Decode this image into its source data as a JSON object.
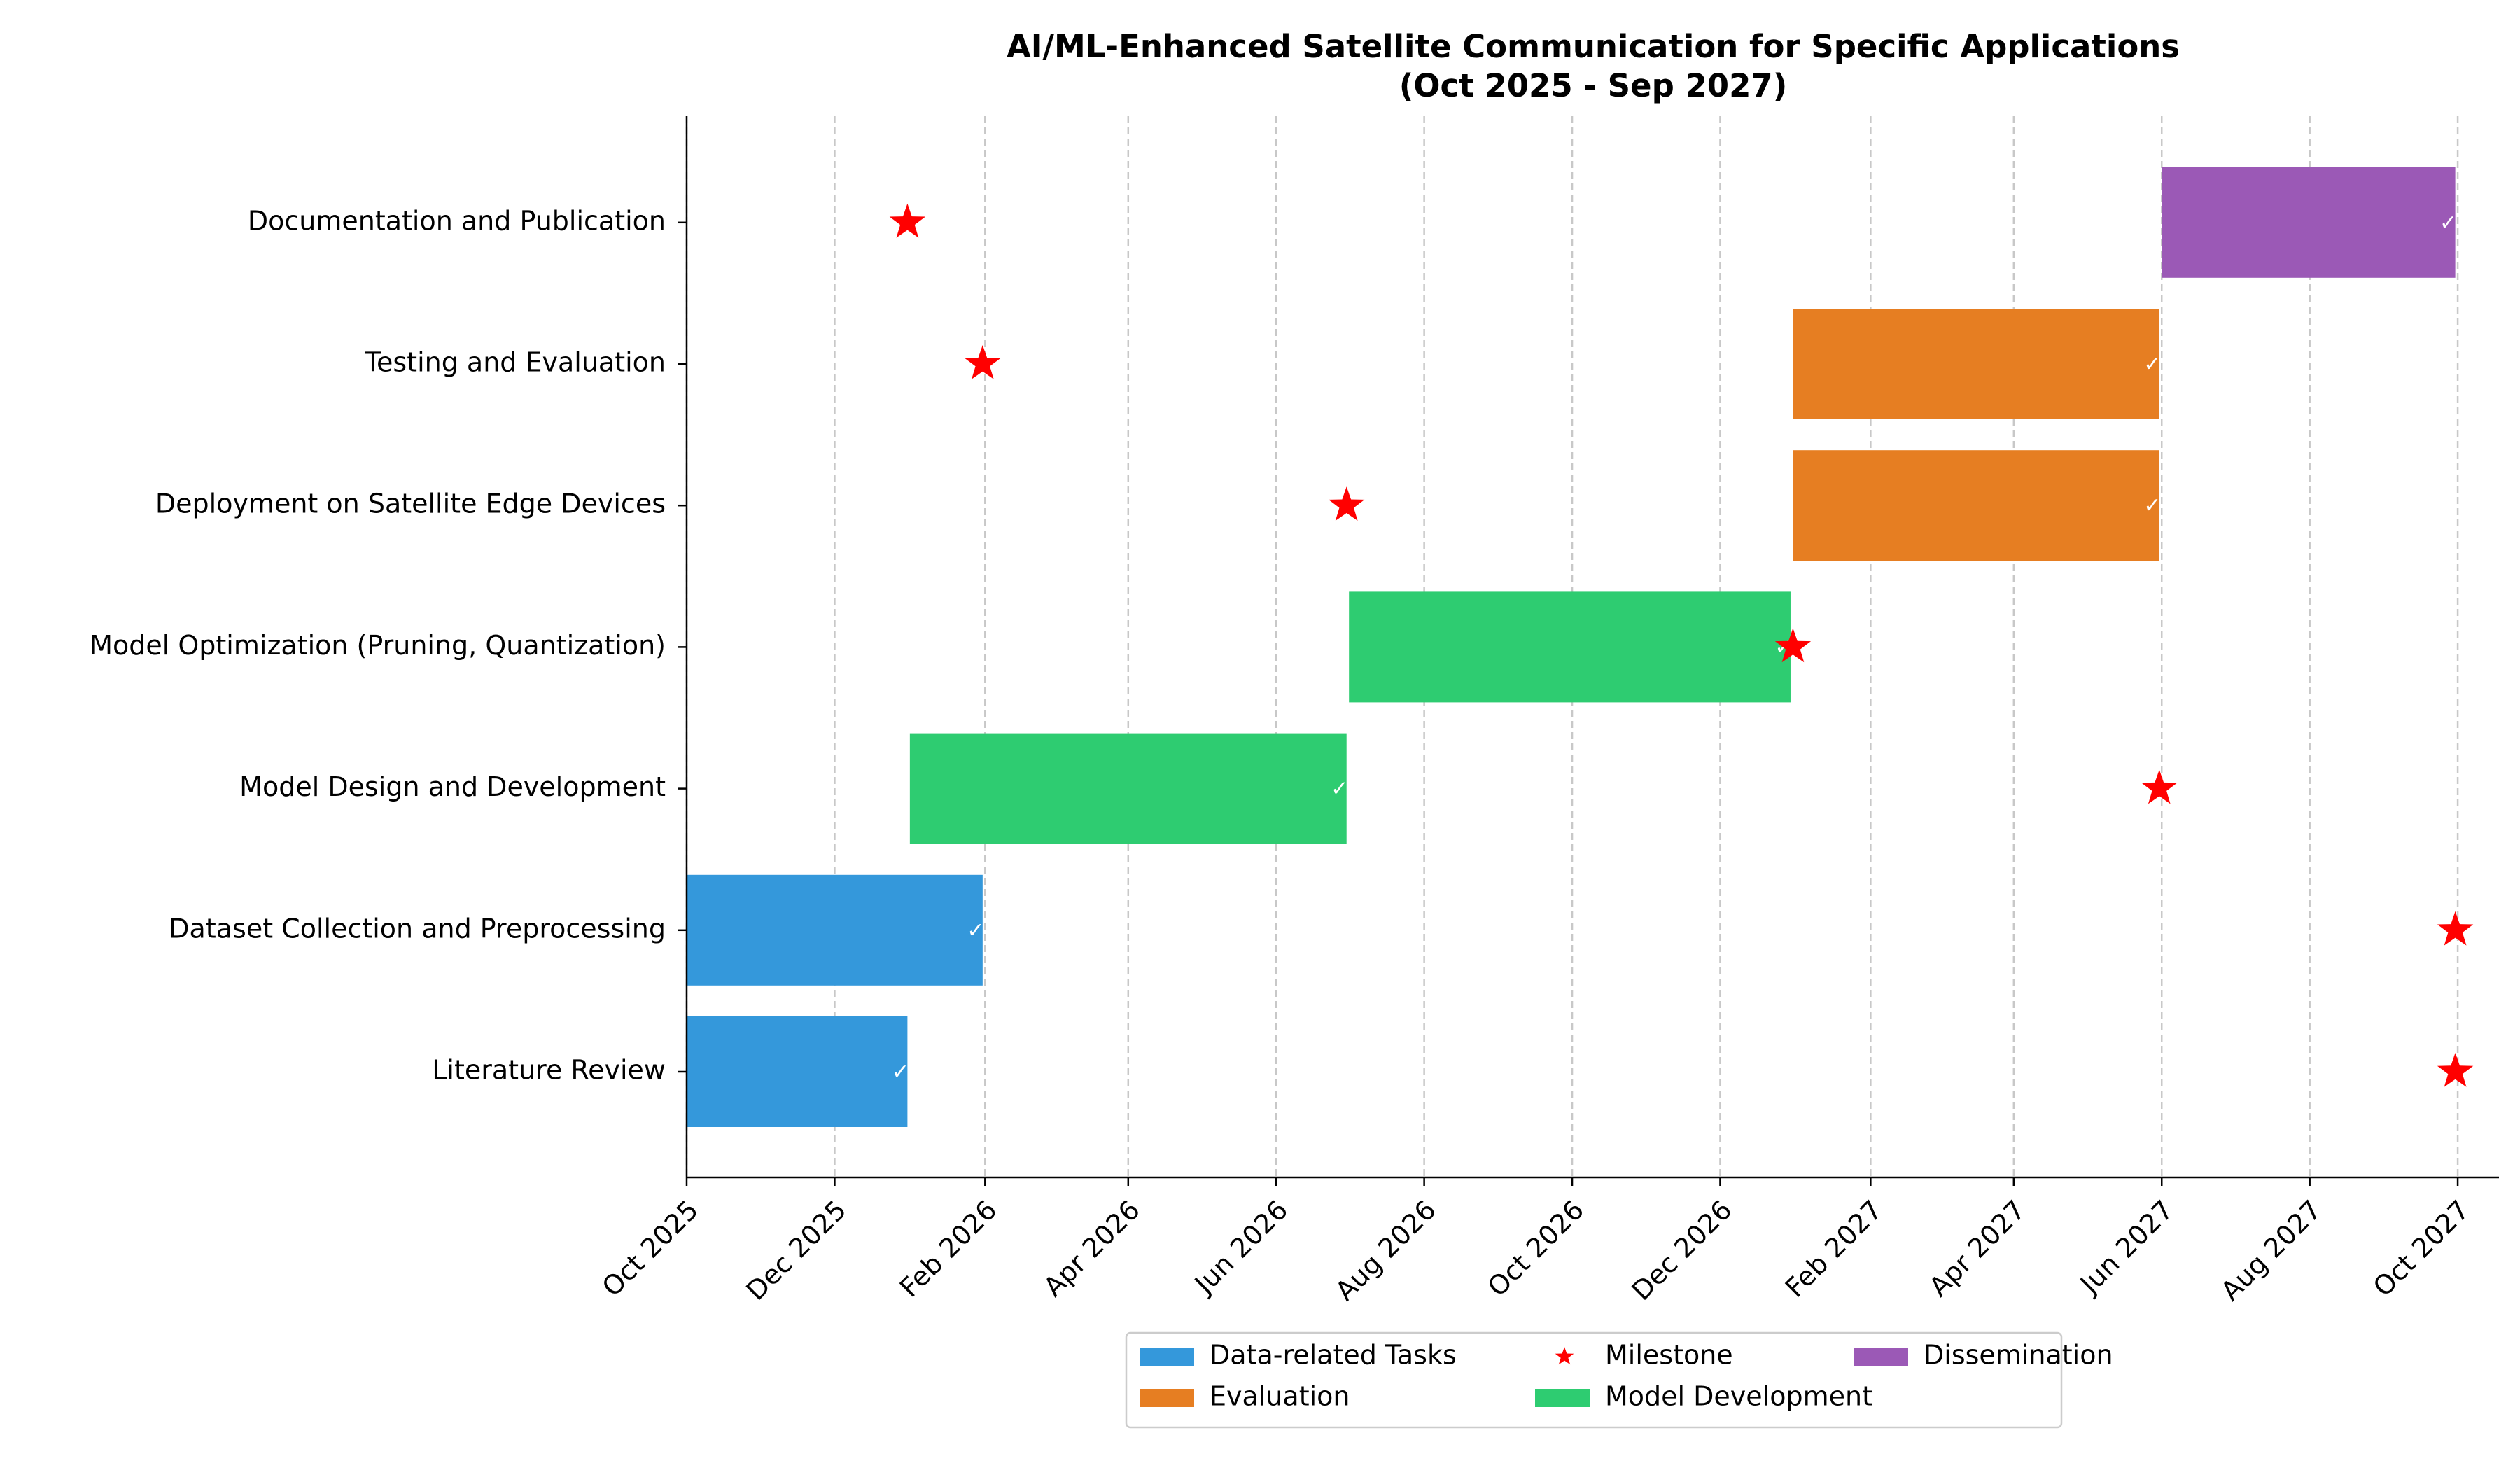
{
  "chart_data": {
    "type": "gantt",
    "title": "AI/ML-Enhanced Satellite Communication for Specific Applications",
    "subtitle": "(Oct 2025 - Sep 2027)",
    "xlim": [
      "2025-10-01",
      "2027-10-18"
    ],
    "x_ticks": [
      {
        "date": "2025-10-01",
        "label": "Oct 2025"
      },
      {
        "date": "2025-12-01",
        "label": "Dec 2025"
      },
      {
        "date": "2026-02-01",
        "label": "Feb 2026"
      },
      {
        "date": "2026-04-01",
        "label": "Apr 2026"
      },
      {
        "date": "2026-06-01",
        "label": "Jun 2026"
      },
      {
        "date": "2026-08-01",
        "label": "Aug 2026"
      },
      {
        "date": "2026-10-01",
        "label": "Oct 2026"
      },
      {
        "date": "2026-12-01",
        "label": "Dec 2026"
      },
      {
        "date": "2027-02-01",
        "label": "Feb 2027"
      },
      {
        "date": "2027-04-01",
        "label": "Apr 2027"
      },
      {
        "date": "2027-06-01",
        "label": "Jun 2027"
      },
      {
        "date": "2027-08-01",
        "label": "Aug 2027"
      },
      {
        "date": "2027-10-01",
        "label": "Oct 2027"
      }
    ],
    "grid": "vertical dashed",
    "legend": {
      "placement": "bottom-center",
      "entries": [
        {
          "label": "Data-related Tasks",
          "color": "#3498db",
          "kind": "bar"
        },
        {
          "label": "Evaluation",
          "color": "#e67e22",
          "kind": "bar"
        },
        {
          "label": "Milestone",
          "color": "#ff0000",
          "kind": "star"
        },
        {
          "label": "Model Development",
          "color": "#2ecc71",
          "kind": "bar"
        },
        {
          "label": "Dissemination",
          "color": "#9b59b6",
          "kind": "bar"
        }
      ]
    },
    "tasks": [
      {
        "name": "Documentation and Publication",
        "start": "2027-06-01",
        "end": "2027-09-30",
        "color": "#9b59b6",
        "milestone": "2025-12-31"
      },
      {
        "name": "Testing and Evaluation",
        "start": "2026-12-31",
        "end": "2027-05-31",
        "color": "#e67e22",
        "milestone": "2026-01-31"
      },
      {
        "name": "Deployment on Satellite Edge Devices",
        "start": "2026-12-31",
        "end": "2027-05-31",
        "color": "#e67e22",
        "milestone": "2026-06-30"
      },
      {
        "name": "Model Optimization (Pruning, Quantization)",
        "start": "2026-07-01",
        "end": "2026-12-30",
        "color": "#2ecc71",
        "milestone": "2026-12-31"
      },
      {
        "name": "Model Design and Development",
        "start": "2026-01-01",
        "end": "2026-06-30",
        "color": "#2ecc71",
        "milestone": "2027-05-31"
      },
      {
        "name": "Dataset Collection and Preprocessing",
        "start": "2025-10-01",
        "end": "2026-01-31",
        "color": "#3498db",
        "milestone": "2027-09-30"
      },
      {
        "name": "Literature Review",
        "start": "2025-10-01",
        "end": "2025-12-31",
        "color": "#3498db",
        "milestone": "2027-09-30"
      }
    ]
  }
}
